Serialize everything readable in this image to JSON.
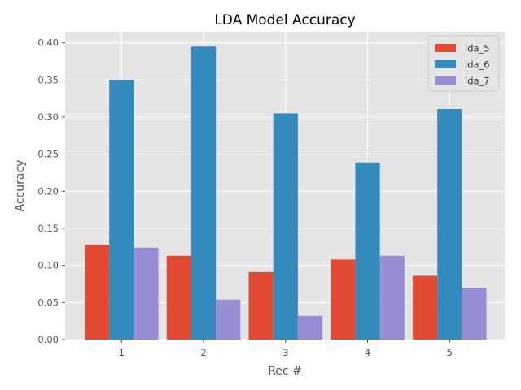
{
  "chart_data": {
    "type": "bar",
    "title": "LDA Model Accuracy",
    "xlabel": "Rec #",
    "ylabel": "Accuracy",
    "categories": [
      "1",
      "2",
      "3",
      "4",
      "5"
    ],
    "series": [
      {
        "name": "lda_5",
        "color": "#E24A33",
        "values": [
          0.128,
          0.113,
          0.091,
          0.108,
          0.086
        ]
      },
      {
        "name": "lda_6",
        "color": "#348ABD",
        "values": [
          0.35,
          0.395,
          0.305,
          0.239,
          0.311
        ]
      },
      {
        "name": "lda_7",
        "color": "#988ED5",
        "values": [
          0.124,
          0.054,
          0.032,
          0.113,
          0.07
        ]
      }
    ],
    "ylim": [
      0,
      0.415
    ],
    "yticks": [
      "0.00",
      "0.05",
      "0.10",
      "0.15",
      "0.20",
      "0.25",
      "0.30",
      "0.35",
      "0.40"
    ],
    "grid": true,
    "legend_position": "top-right",
    "style": {
      "plot_background": "#E5E5E5",
      "grid_color": "#FFFFFF"
    }
  }
}
